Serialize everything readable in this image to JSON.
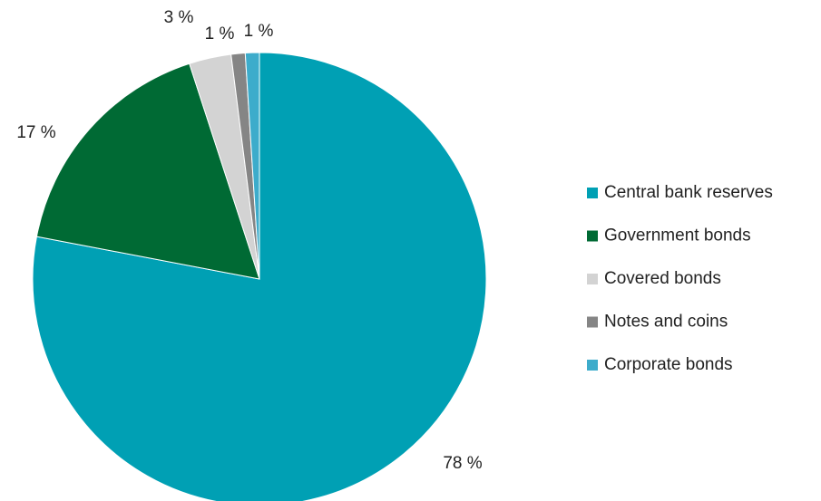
{
  "chart_data": {
    "type": "pie",
    "categories": [
      "Central bank reserves",
      "Government bonds",
      "Covered bonds",
      "Notes and coins",
      "Corporate bonds"
    ],
    "values": [
      78,
      17,
      3,
      1,
      1
    ],
    "value_labels": [
      "78 %",
      "17 %",
      "3 %",
      "1 %",
      "1 %"
    ],
    "colors": [
      "#00a0b4",
      "#006a34",
      "#d3d3d3",
      "#858585",
      "#3daccb"
    ],
    "legend": "right"
  }
}
